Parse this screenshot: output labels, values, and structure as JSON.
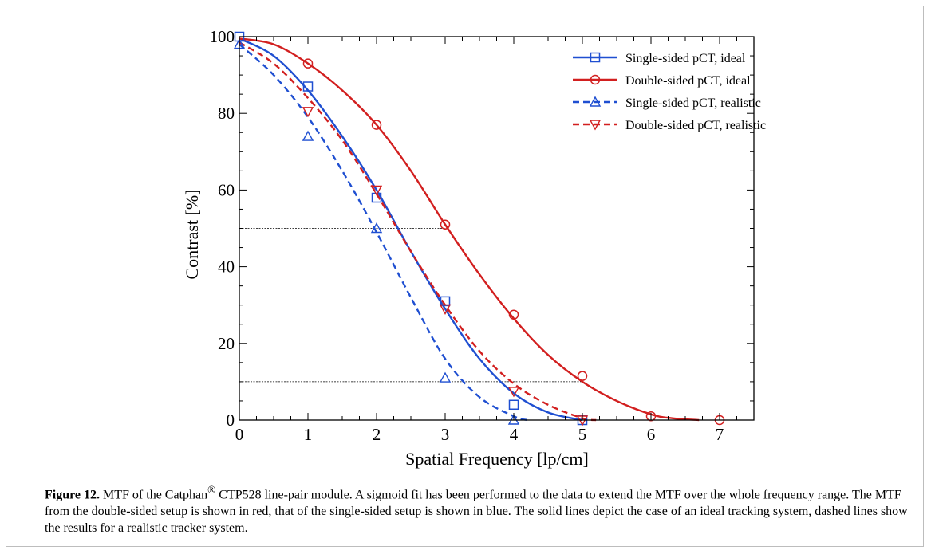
{
  "figure": {
    "caption_label": "Figure 12.",
    "caption_pre": " MTF of the Catphan",
    "caption_sup": "®",
    "caption_post": " CTP528 line-pair module. A sigmoid fit has been performed to the data to extend the MTF over the whole frequency range. The MTF from the double-sided setup is shown in red, that of the single-sided setup is shown in blue. The solid lines depict the case of an ideal tracking system, dashed lines show the results for a realistic tracker system."
  },
  "chart_data": {
    "type": "line",
    "title": "",
    "xlabel": "Spatial Frequency [lp/cm]",
    "ylabel": "Contrast [%]",
    "xlim": [
      0,
      7.5
    ],
    "ylim": [
      0,
      100
    ],
    "xticks": [
      0,
      1,
      2,
      3,
      4,
      5,
      6,
      7
    ],
    "yticks": [
      0,
      20,
      40,
      60,
      80,
      100
    ],
    "grid": false,
    "legend_position": "top-right",
    "reference_lines": [
      {
        "y": 50,
        "x_range": [
          0,
          3
        ],
        "style": "dotted",
        "color": "#000000"
      },
      {
        "y": 10,
        "x_range": [
          0,
          5
        ],
        "style": "dotted",
        "color": "#000000"
      }
    ],
    "series": [
      {
        "name": "Single-sided pCT, ideal",
        "color": "#1f4fd1",
        "dash": "solid",
        "marker": "square",
        "points": {
          "x": [
            0,
            1,
            2,
            3,
            4,
            5
          ],
          "y": [
            100,
            87,
            58,
            31,
            4,
            0
          ]
        },
        "fit": {
          "x": [
            0,
            0.5,
            1,
            1.5,
            2,
            2.5,
            3,
            3.5,
            4,
            4.5,
            5
          ],
          "y": [
            99.5,
            95,
            86,
            74,
            60,
            44,
            29,
            16,
            7,
            2,
            0
          ]
        }
      },
      {
        "name": "Double-sided pCT, ideal",
        "color": "#d21f1f",
        "dash": "solid",
        "marker": "circle",
        "points": {
          "x": [
            1,
            2,
            3,
            4,
            5,
            6,
            7
          ],
          "y": [
            93,
            77,
            51,
            27.5,
            11.5,
            1,
            0
          ]
        },
        "fit": {
          "x": [
            0,
            0.5,
            1,
            1.5,
            2,
            2.5,
            3,
            3.5,
            4,
            4.5,
            5,
            5.5,
            6,
            6.3,
            6.7
          ],
          "y": [
            99.5,
            98,
            93,
            86,
            77,
            65,
            51,
            38,
            26.5,
            17,
            10,
            5,
            1.5,
            0.5,
            0
          ]
        }
      },
      {
        "name": "Single-sided pCT, realistic",
        "color": "#1f4fd1",
        "dash": "dashed",
        "marker": "triangle-up",
        "points": {
          "x": [
            0,
            1,
            2,
            3,
            4
          ],
          "y": [
            98,
            74,
            50,
            11,
            0
          ]
        },
        "fit": {
          "x": [
            0,
            0.5,
            1,
            1.5,
            2,
            2.5,
            3,
            3.5,
            4,
            4.2
          ],
          "y": [
            98,
            90,
            79,
            65,
            49,
            32,
            16,
            6,
            1,
            0
          ]
        }
      },
      {
        "name": "Double-sided pCT, realistic",
        "color": "#d21f1f",
        "dash": "dashed",
        "marker": "triangle-down",
        "points": {
          "x": [
            1,
            2,
            3,
            4,
            5
          ],
          "y": [
            80.5,
            60,
            29,
            7.5,
            0
          ]
        },
        "fit": {
          "x": [
            0,
            0.5,
            1,
            1.5,
            2,
            2.5,
            3,
            3.5,
            4,
            4.5,
            5,
            5.2
          ],
          "y": [
            98.5,
            93,
            84,
            73,
            59,
            44,
            30,
            18,
            9.5,
            4,
            0.5,
            0
          ]
        }
      }
    ]
  }
}
